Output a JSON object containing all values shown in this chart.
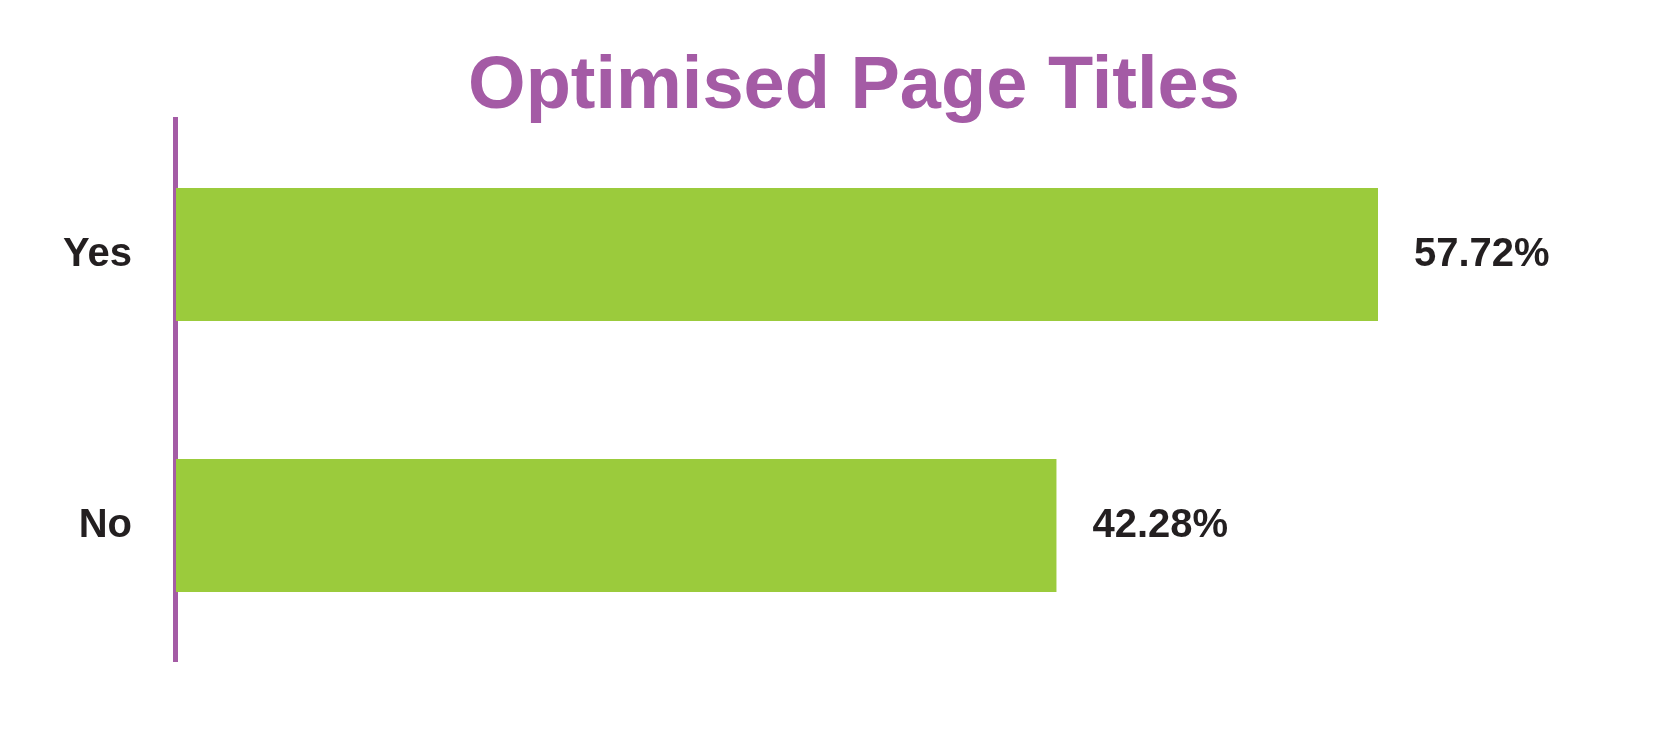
{
  "chart_data": {
    "type": "bar",
    "orientation": "horizontal",
    "title": "Optimised Page Titles",
    "categories": [
      "Yes",
      "No"
    ],
    "values": [
      57.72,
      42.28
    ],
    "value_labels": [
      "57.72%",
      "42.28%"
    ],
    "color": "#9bcb3c",
    "tick_labels": "y"
  }
}
